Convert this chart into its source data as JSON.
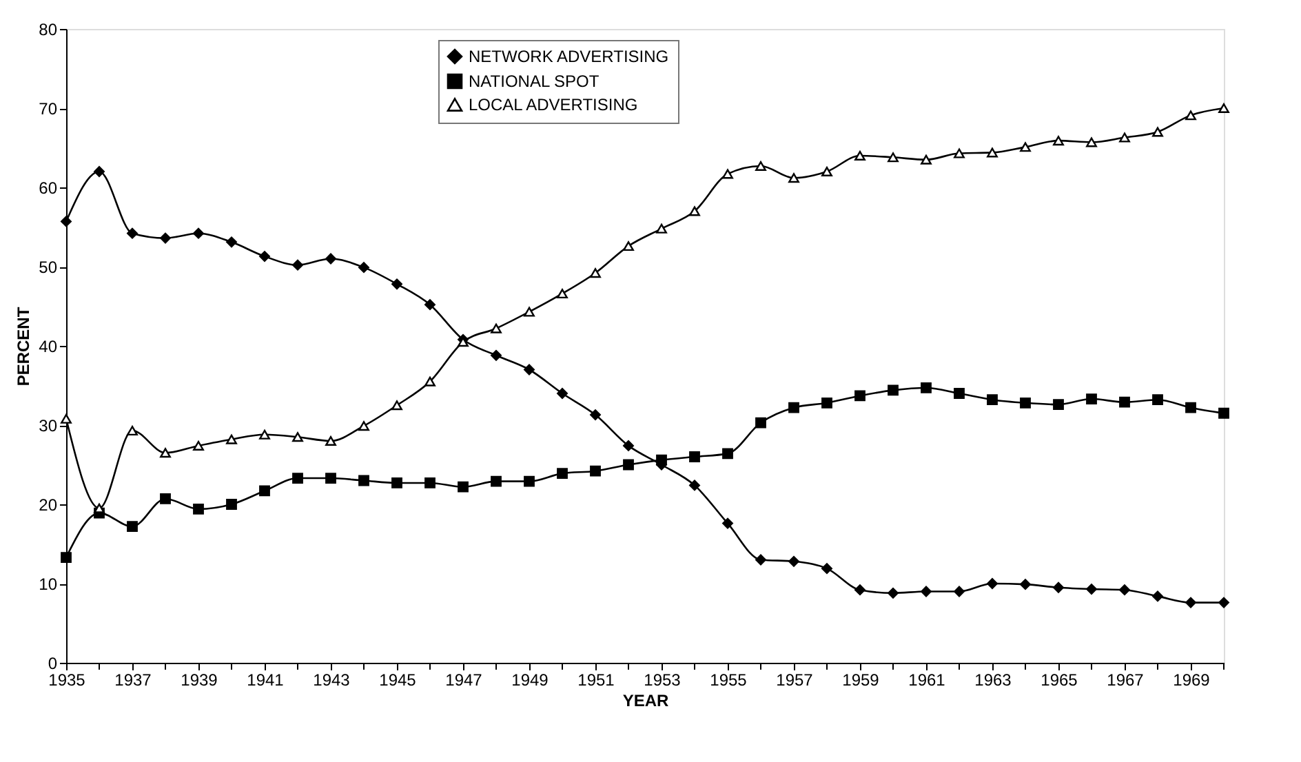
{
  "chart_data": {
    "type": "line",
    "xlabel": "YEAR",
    "ylabel": "PERCENT",
    "x": [
      1935,
      1936,
      1937,
      1938,
      1939,
      1940,
      1941,
      1942,
      1943,
      1944,
      1945,
      1946,
      1947,
      1948,
      1949,
      1950,
      1951,
      1952,
      1953,
      1954,
      1955,
      1956,
      1957,
      1958,
      1959,
      1960,
      1961,
      1962,
      1963,
      1964,
      1965,
      1966,
      1967,
      1968,
      1969,
      1970
    ],
    "series": [
      {
        "name": "NETWORK ADVERTISING",
        "color": "#000000",
        "marker": "diamond",
        "values": [
          55.7,
          62,
          54.2,
          53.6,
          54.2,
          53.1,
          51.3,
          50.2,
          51,
          49.9,
          47.8,
          45.2,
          40.8,
          38.8,
          37,
          34,
          31.3,
          27.4,
          25,
          22.4,
          17.6,
          13,
          12.8,
          11.9,
          9.2,
          8.8,
          9,
          9,
          10,
          9.9,
          9.5,
          9.3,
          9.2,
          8.4,
          7.6,
          7.6
        ]
      },
      {
        "name": "NATIONAL SPOT",
        "color": "#000000",
        "marker": "square",
        "values": [
          13.3,
          18.9,
          17.2,
          20.7,
          19.4,
          20,
          21.7,
          23.3,
          23.3,
          23,
          22.7,
          22.7,
          22.2,
          22.9,
          22.9,
          23.9,
          24.2,
          25,
          25.6,
          26,
          26.4,
          30.3,
          32.2,
          32.8,
          33.7,
          34.4,
          34.7,
          34,
          33.2,
          32.8,
          32.6,
          33.3,
          32.9,
          33.2,
          32.2,
          31.5
        ]
      },
      {
        "name": "LOCAL ADVERTISING",
        "color": "#000000",
        "marker": "triangle",
        "values": [
          30.8,
          19.5,
          29.3,
          26.5,
          27.4,
          28.2,
          28.8,
          28.5,
          28,
          29.9,
          32.5,
          35.5,
          40.5,
          42.2,
          44.3,
          46.6,
          49.2,
          52.6,
          54.8,
          57,
          61.7,
          62.7,
          61.2,
          62,
          64,
          63.8,
          63.5,
          64.3,
          64.4,
          65.1,
          65.9,
          65.7,
          66.3,
          67,
          69.1,
          70
        ]
      }
    ],
    "xlim": [
      1935,
      1970
    ],
    "xticks": [
      1935,
      {
        "value": 1936,
        "label": null
      },
      1937,
      {
        "value": 1938,
        "label": null
      },
      1939,
      {
        "value": 1940,
        "label": null
      },
      1941,
      {
        "value": 1942,
        "label": null
      },
      1943,
      {
        "value": 1944,
        "label": null
      },
      1945,
      {
        "value": 1946,
        "label": null
      },
      1947,
      {
        "value": 1948,
        "label": null
      },
      1949,
      {
        "value": 1950,
        "label": null
      },
      1951,
      {
        "value": 1952,
        "label": null
      },
      1953,
      {
        "value": 1954,
        "label": null
      },
      1955,
      {
        "value": 1956,
        "label": null
      },
      1957,
      {
        "value": 1958,
        "label": null
      },
      1959,
      {
        "value": 1960,
        "label": null
      },
      1961,
      {
        "value": 1962,
        "label": null
      },
      1963,
      {
        "value": 1964,
        "label": null
      },
      1965,
      {
        "value": 1966,
        "label": null
      },
      1967,
      {
        "value": 1968,
        "label": null
      },
      1969,
      {
        "value": 1970,
        "label": null
      }
    ],
    "ylim": [
      0,
      80
    ],
    "yticks": [
      0,
      10,
      20,
      30,
      40,
      50,
      60,
      70,
      80
    ],
    "grid": false,
    "legend": "top left",
    "line_style": "solid"
  }
}
